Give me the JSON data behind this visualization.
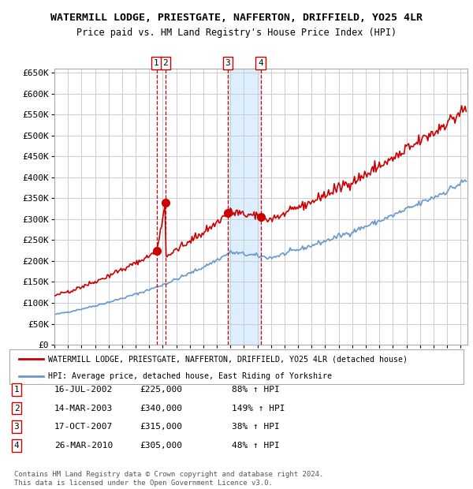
{
  "title": "WATERMILL LODGE, PRIESTGATE, NAFFERTON, DRIFFIELD, YO25 4LR",
  "subtitle": "Price paid vs. HM Land Registry's House Price Index (HPI)",
  "ylim": [
    0,
    660000
  ],
  "yticks": [
    0,
    50000,
    100000,
    150000,
    200000,
    250000,
    300000,
    350000,
    400000,
    450000,
    500000,
    550000,
    600000,
    650000
  ],
  "ytick_labels": [
    "£0",
    "£50K",
    "£100K",
    "£150K",
    "£200K",
    "£250K",
    "£300K",
    "£350K",
    "£400K",
    "£450K",
    "£500K",
    "£550K",
    "£600K",
    "£650K"
  ],
  "transactions": [
    {
      "num": 1,
      "date_float": 2002.542,
      "price": 225000,
      "label": "16-JUL-2002",
      "pct": "88%",
      "dir": "↑"
    },
    {
      "num": 2,
      "date_float": 2003.208,
      "price": 340000,
      "label": "14-MAR-2003",
      "pct": "149%",
      "dir": "↑"
    },
    {
      "num": 3,
      "date_float": 2007.792,
      "price": 315000,
      "label": "17-OCT-2007",
      "pct": "38%",
      "dir": "↑"
    },
    {
      "num": 4,
      "date_float": 2010.233,
      "price": 305000,
      "label": "26-MAR-2010",
      "pct": "48%",
      "dir": "↑"
    }
  ],
  "hpi_color": "#6699cc",
  "price_color": "#cc0000",
  "background_color": "#ffffff",
  "grid_color": "#cccccc",
  "highlight_color": "#ddeeff",
  "footnote": "Contains HM Land Registry data © Crown copyright and database right 2024.\nThis data is licensed under the Open Government Licence v3.0.",
  "legend_line1": "WATERMILL LODGE, PRIESTGATE, NAFFERTON, DRIFFIELD, YO25 4LR (detached house)",
  "legend_line2": "HPI: Average price, detached house, East Riding of Yorkshire"
}
